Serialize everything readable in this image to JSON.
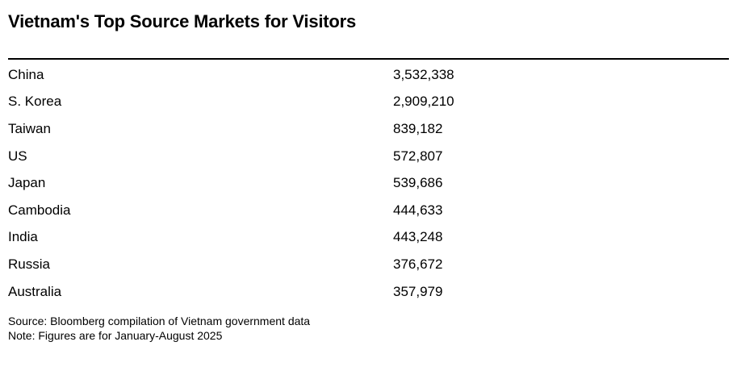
{
  "title": "Vietnam's Top Source Markets for Visitors",
  "table": {
    "rows": [
      {
        "market": "China",
        "visitors": "3,532,338"
      },
      {
        "market": "S. Korea",
        "visitors": "2,909,210"
      },
      {
        "market": "Taiwan",
        "visitors": "839,182"
      },
      {
        "market": "US",
        "visitors": "572,807"
      },
      {
        "market": "Japan",
        "visitors": "539,686"
      },
      {
        "market": "Cambodia",
        "visitors": "444,633"
      },
      {
        "market": "India",
        "visitors": "443,248"
      },
      {
        "market": "Russia",
        "visitors": "376,672"
      },
      {
        "market": "Australia",
        "visitors": "357,979"
      }
    ]
  },
  "footer": {
    "source": "Source: Bloomberg compilation of Vietnam government data",
    "note": "Note: Figures are for January-August 2025"
  },
  "colors": {
    "text": "#000000",
    "rule": "#000000",
    "background": "#ffffff"
  },
  "chart_data": {
    "type": "table",
    "title": "Vietnam's Top Source Markets for Visitors",
    "categories": [
      "China",
      "S. Korea",
      "Taiwan",
      "US",
      "Japan",
      "Cambodia",
      "India",
      "Russia",
      "Australia"
    ],
    "values": [
      3532338,
      2909210,
      839182,
      572807,
      539686,
      444633,
      443248,
      376672,
      357979
    ],
    "source": "Source: Bloomberg compilation of Vietnam government data",
    "note": "Note: Figures are for January-August 2025",
    "legend_position": "none",
    "grid": false
  }
}
